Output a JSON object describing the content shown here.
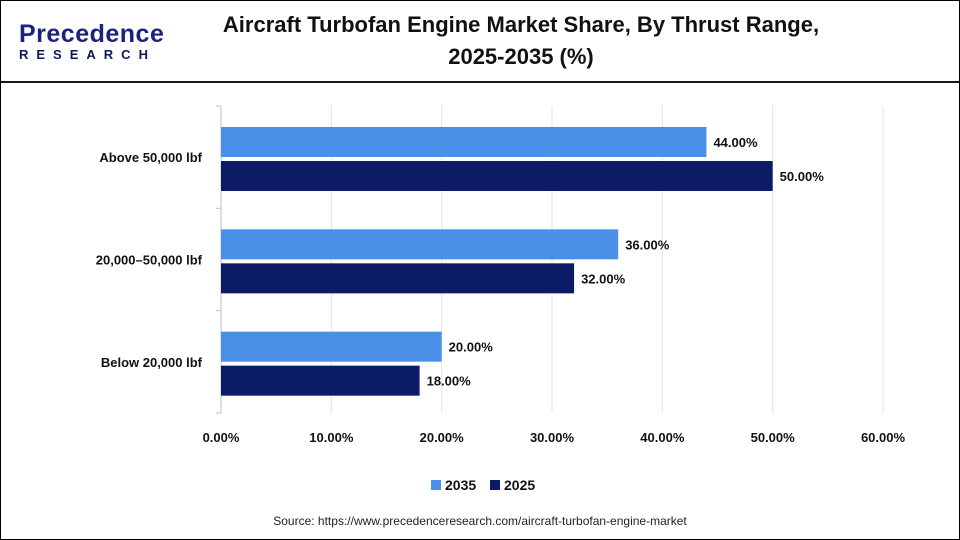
{
  "logo": {
    "line1": "Precedence",
    "line2": "RESEARCH"
  },
  "title": "Aircraft Turbofan Engine Market Share, By Thrust Range, 2025-2035 (%)",
  "source": "Source: https://www.precedenceresearch.com/aircraft-turbofan-engine-market",
  "chart_data": {
    "type": "bar",
    "orientation": "horizontal",
    "title": "Aircraft Turbofan Engine Market Share, By Thrust Range, 2025-2035 (%)",
    "categories": [
      "Above 50,000 lbf",
      "20,000–50,000 lbf",
      "Below 20,000 lbf"
    ],
    "series": [
      {
        "name": "2035",
        "color": "#4a90e8",
        "values": [
          44,
          36,
          20
        ],
        "labels": [
          "44.00%",
          "36.00%",
          "20.00%"
        ]
      },
      {
        "name": "2025",
        "color": "#0b1b66",
        "values": [
          50,
          32,
          18
        ],
        "labels": [
          "50.00%",
          "32.00%",
          "18.00%"
        ]
      }
    ],
    "xlim": [
      0,
      60
    ],
    "xticks": [
      "0.00%",
      "10.00%",
      "20.00%",
      "30.00%",
      "40.00%",
      "50.00%",
      "60.00%"
    ],
    "grid": true,
    "legend": "bottom"
  }
}
